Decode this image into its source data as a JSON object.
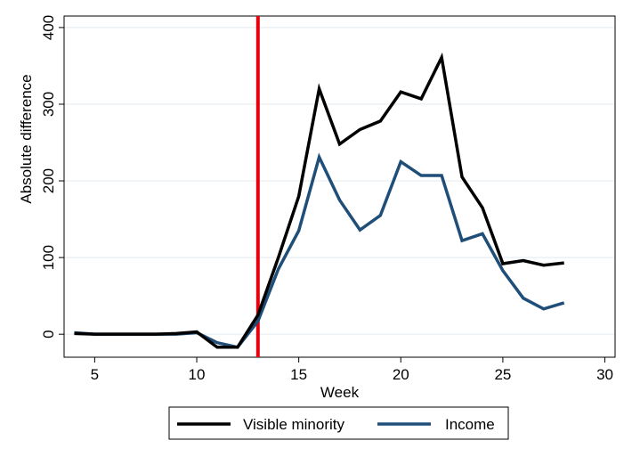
{
  "chart_data": {
    "type": "line",
    "title": "",
    "xlabel": "Week",
    "ylabel": "Absolute difference",
    "xlim": [
      3.5,
      30.5
    ],
    "ylim": [
      -30,
      415
    ],
    "xticks": [
      5,
      10,
      15,
      20,
      25,
      30
    ],
    "yticks": [
      0,
      100,
      200,
      300,
      400
    ],
    "grid": "horizontal",
    "legend_position": "bottom",
    "reference_line": {
      "axis": "x",
      "value": 13,
      "color": "#e8000b"
    },
    "series": [
      {
        "name": "Visible minority",
        "color": "#000000",
        "x": [
          4,
          5,
          6,
          7,
          8,
          9,
          10,
          11,
          12,
          13,
          14,
          15,
          16,
          17,
          18,
          19,
          20,
          21,
          22,
          23,
          24,
          25,
          26,
          27,
          28
        ],
        "y": [
          1,
          0,
          0,
          0,
          0,
          1,
          3,
          -17,
          -17,
          25,
          100,
          180,
          320,
          248,
          267,
          278,
          316,
          307,
          361,
          205,
          165,
          92,
          96,
          90,
          93
        ]
      },
      {
        "name": "Income",
        "color": "#1f4e79",
        "x": [
          4,
          5,
          6,
          7,
          8,
          9,
          10,
          11,
          12,
          13,
          14,
          15,
          16,
          17,
          18,
          19,
          20,
          21,
          22,
          23,
          24,
          25,
          26,
          27,
          28
        ],
        "y": [
          2,
          0,
          0,
          0,
          0,
          0,
          2,
          -11,
          -17,
          17,
          85,
          135,
          231,
          175,
          136,
          155,
          225,
          207,
          207,
          122,
          131,
          83,
          47,
          33,
          41
        ]
      }
    ]
  }
}
